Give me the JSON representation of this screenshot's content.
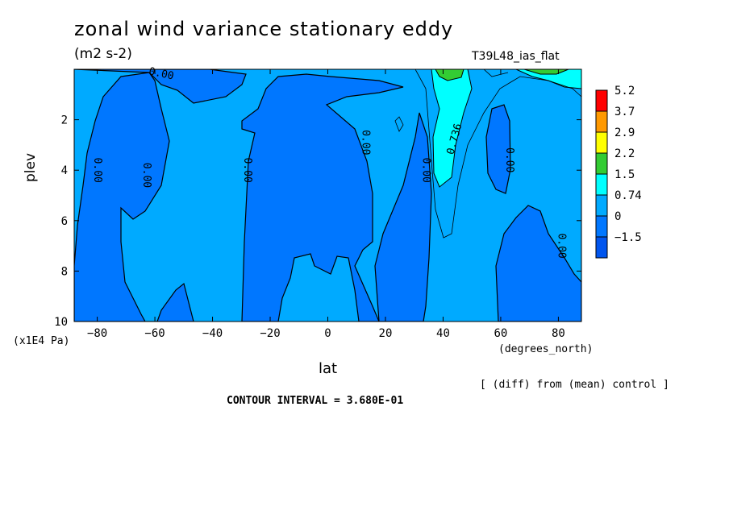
{
  "chart_data": {
    "type": "contour",
    "title": "zonal wind variance stationary eddy",
    "units": "(m2 s-2)",
    "run_label": "T39L48_ias_flat",
    "xlabel": "lat",
    "x_units": "(degrees_north)",
    "ylabel": "plev",
    "y_units": "(x1E4 Pa)",
    "xlim": [
      -88,
      88
    ],
    "ylim": [
      10,
      0
    ],
    "x_ticks": [
      "-80",
      "-60",
      "-40",
      "-20",
      "0",
      "20",
      "40",
      "60",
      "80"
    ],
    "y_ticks": [
      "2",
      "4",
      "6",
      "8",
      "10"
    ],
    "colorbar": {
      "labels": [
        "5.2",
        "3.7",
        "2.9",
        "2.2",
        "1.5",
        "0.74",
        "0",
        "-1.5"
      ],
      "colors": [
        "#ff0000",
        "#ff9900",
        "#ffff00",
        "#33cc33",
        "#00ffff",
        "#00aaff",
        "#0077ff",
        "#0055ee"
      ]
    },
    "contour_labels": [
      {
        "text": "0.00",
        "lat": -58,
        "plev": 0.3
      },
      {
        "text": "0.00",
        "lat": -81,
        "plev": 4.0
      },
      {
        "text": "0.00",
        "lat": -64,
        "plev": 4.2
      },
      {
        "text": "0.00",
        "lat": -29,
        "plev": 4.0
      },
      {
        "text": "0.00",
        "lat": 12,
        "plev": 2.9
      },
      {
        "text": "0.00",
        "lat": 33,
        "plev": 4.0
      },
      {
        "text": "0.736",
        "lat": 45,
        "plev": 2.8
      },
      {
        "text": "0.00",
        "lat": 62,
        "plev": 3.6
      },
      {
        "text": "0.00",
        "lat": 80,
        "plev": 7.0
      }
    ],
    "note": "[ (diff) from (mean) control ]",
    "contour_interval": "CONTOUR INTERVAL = 3.680E-01"
  }
}
